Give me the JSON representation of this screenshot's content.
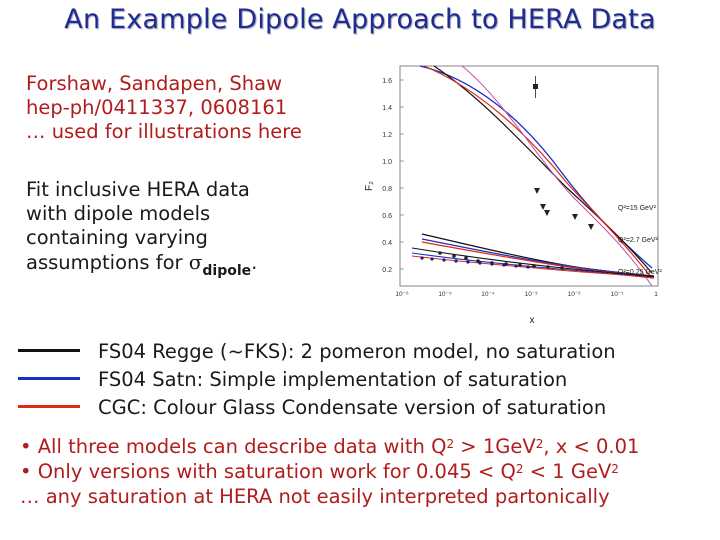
{
  "slide": {
    "title": "An Example Dipole Approach to HERA Data"
  },
  "refs": {
    "line1": "Forshaw, Sandapen, Shaw",
    "line2": "hep-ph/0411337, 0608161",
    "line3": "… used for illustrations here"
  },
  "fit": {
    "line1": "Fit inclusive HERA data",
    "line2": "with dipole models",
    "line3": "containing varying",
    "line4_prefix": "assumptions for ",
    "sigma": "σ",
    "sub": "dipole",
    "suffix": "."
  },
  "plot": {
    "y_label": "F₂",
    "x_label": "x",
    "y_ticks": [
      "1.6",
      "1.4",
      "1.2",
      "1.0",
      "0.8",
      "0.6",
      "0.4",
      "0.2"
    ],
    "x_ticks": [
      "10⁻⁶",
      "10⁻⁵",
      "10⁻⁴",
      "10⁻³",
      "10⁻²",
      "10⁻¹",
      "1"
    ],
    "q2_labels": [
      "Q²=15 GeV²",
      "Q²=2.7 GeV²",
      "Q²=0.25 GeV²"
    ]
  },
  "legend": [
    {
      "text": "FS04 Regge (~FKS): 2 pomeron model, no saturation",
      "color": "#111111"
    },
    {
      "text": "FS04 Satn: Simple implementation of saturation",
      "color": "#1b2fc4"
    },
    {
      "text": "CGC: Colour Glass Condensate version of saturation",
      "color": "#e02a10"
    }
  ],
  "bullets": {
    "b1_a": "• All three models can describe data with Q",
    "b1_sup1": "2",
    "b1_b": " > 1GeV",
    "b1_sup2": "2",
    "b1_c": ", x < 0.01",
    "b2_a": "• Only versions with saturation work for 0.045 < Q",
    "b2_sup1": "2",
    "b2_b": " < 1 GeV",
    "b2_sup2": "2",
    "b3": "… any saturation at HERA not easily interpreted partonically"
  }
}
